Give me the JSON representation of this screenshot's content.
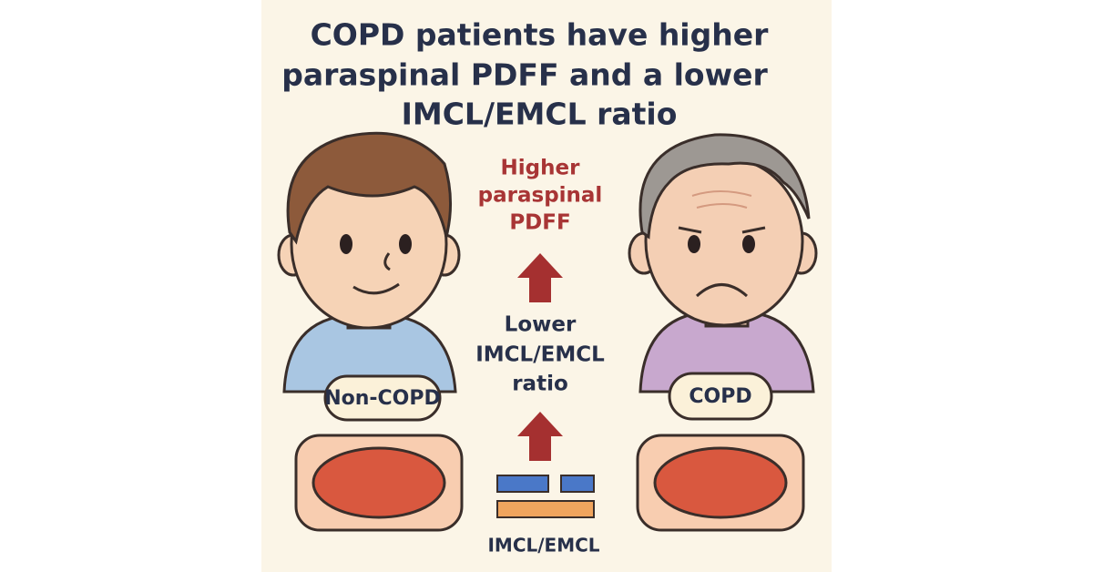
{
  "title": {
    "lines": [
      "COPD patients have higher",
      "paraspinal PDFF and a lower",
      "IMCL/EMCL ratio"
    ]
  },
  "center": {
    "higher_label": {
      "lines": [
        "Higher",
        "paraspinal",
        "PDFF"
      ]
    },
    "lower_label": {
      "lines": [
        "Lower",
        "IMCL/EMCL",
        "ratio"
      ]
    },
    "legend_label": "IMCL/EMCL"
  },
  "people": [
    {
      "label": "Non-COPD"
    },
    {
      "label": "COPD"
    }
  ]
}
